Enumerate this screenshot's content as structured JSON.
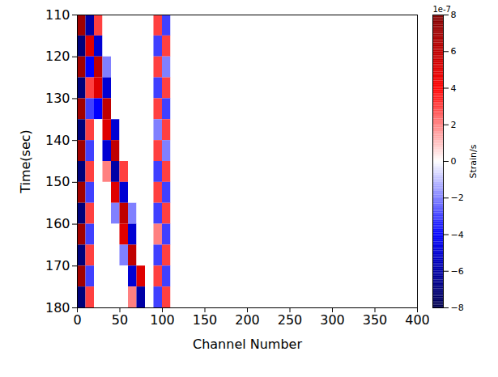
{
  "chart_data": {
    "type": "heatmap",
    "xlabel": "Channel Number",
    "ylabel": "Time(sec)",
    "xlim": [
      0,
      400
    ],
    "xticks": [
      0,
      50,
      100,
      150,
      200,
      250,
      300,
      350,
      400
    ],
    "ylim": [
      180,
      110
    ],
    "yticks": [
      110,
      120,
      130,
      140,
      150,
      160,
      170,
      180
    ],
    "x_edges": [
      0,
      10,
      20,
      30,
      40,
      50,
      60,
      70,
      80,
      90,
      100,
      110,
      120,
      130,
      140,
      150,
      160,
      170,
      180,
      190,
      200,
      210,
      220,
      230,
      240,
      250,
      260,
      270,
      280,
      290,
      300,
      310,
      320,
      330,
      340,
      350,
      360,
      370,
      380,
      390,
      400
    ],
    "y_edges": [
      110,
      115,
      120,
      125,
      130,
      135,
      140,
      145,
      150,
      155,
      160,
      165,
      170,
      175,
      180
    ],
    "values": [
      [
        7,
        -6,
        3,
        0,
        0,
        0,
        0,
        0,
        0,
        3,
        -3,
        0,
        0,
        0,
        0,
        0,
        0,
        0,
        0,
        0,
        0,
        0,
        0,
        0,
        0,
        0,
        0,
        0,
        0,
        0,
        0,
        0,
        0,
        0,
        0,
        0,
        0,
        0,
        0,
        0
      ],
      [
        -7,
        5,
        -5,
        0,
        0,
        0,
        0,
        0,
        0,
        -3,
        3,
        0,
        0,
        0,
        0,
        0,
        0,
        0,
        0,
        0,
        0,
        0,
        0,
        0,
        0,
        0,
        0,
        0,
        0,
        0,
        0,
        0,
        0,
        0,
        0,
        0,
        0,
        0,
        0,
        0
      ],
      [
        7,
        -4,
        6,
        -2,
        0,
        0,
        0,
        0,
        0,
        3,
        -2,
        0,
        0,
        0,
        0,
        0,
        0,
        0,
        0,
        0,
        0,
        0,
        0,
        0,
        0,
        0,
        0,
        0,
        0,
        0,
        0,
        0,
        0,
        0,
        0,
        0,
        0,
        0,
        0,
        0
      ],
      [
        -7,
        3,
        5,
        -5,
        0,
        0,
        0,
        0,
        0,
        -3,
        3,
        0,
        0,
        0,
        0,
        0,
        0,
        0,
        0,
        0,
        0,
        0,
        0,
        0,
        0,
        0,
        0,
        0,
        0,
        0,
        0,
        0,
        0,
        0,
        0,
        0,
        0,
        0,
        0,
        0
      ],
      [
        7,
        -3,
        -4,
        6,
        0,
        0,
        0,
        0,
        0,
        3,
        -3,
        0,
        0,
        0,
        0,
        0,
        0,
        0,
        0,
        0,
        0,
        0,
        0,
        0,
        0,
        0,
        0,
        0,
        0,
        0,
        0,
        0,
        0,
        0,
        0,
        0,
        0,
        0,
        0,
        0
      ],
      [
        -7,
        3,
        0,
        5,
        -5,
        0,
        0,
        0,
        0,
        -2,
        3,
        0,
        0,
        0,
        0,
        0,
        0,
        0,
        0,
        0,
        0,
        0,
        0,
        0,
        0,
        0,
        0,
        0,
        0,
        0,
        0,
        0,
        0,
        0,
        0,
        0,
        0,
        0,
        0,
        0
      ],
      [
        7,
        -3,
        0,
        -5,
        6,
        0,
        0,
        0,
        0,
        3,
        -2,
        0,
        0,
        0,
        0,
        0,
        0,
        0,
        0,
        0,
        0,
        0,
        0,
        0,
        0,
        0,
        0,
        0,
        0,
        0,
        0,
        0,
        0,
        0,
        0,
        0,
        0,
        0,
        0,
        0
      ],
      [
        -7,
        3,
        0,
        2,
        -6,
        3,
        0,
        0,
        0,
        -3,
        3,
        0,
        0,
        0,
        0,
        0,
        0,
        0,
        0,
        0,
        0,
        0,
        0,
        0,
        0,
        0,
        0,
        0,
        0,
        0,
        0,
        0,
        0,
        0,
        0,
        0,
        0,
        0,
        0,
        0
      ],
      [
        7,
        -3,
        0,
        0,
        5,
        -5,
        0,
        0,
        0,
        3,
        -3,
        0,
        0,
        0,
        0,
        0,
        0,
        0,
        0,
        0,
        0,
        0,
        0,
        0,
        0,
        0,
        0,
        0,
        0,
        0,
        0,
        0,
        0,
        0,
        0,
        0,
        0,
        0,
        0,
        0
      ],
      [
        -7,
        3,
        0,
        0,
        -2,
        6,
        -2,
        0,
        0,
        -3,
        3,
        0,
        0,
        0,
        0,
        0,
        0,
        0,
        0,
        0,
        0,
        0,
        0,
        0,
        0,
        0,
        0,
        0,
        0,
        0,
        0,
        0,
        0,
        0,
        0,
        0,
        0,
        0,
        0,
        0
      ],
      [
        7,
        -3,
        0,
        0,
        0,
        5,
        -5,
        0,
        0,
        2,
        -3,
        0,
        0,
        0,
        0,
        0,
        0,
        0,
        0,
        0,
        0,
        0,
        0,
        0,
        0,
        0,
        0,
        0,
        0,
        0,
        0,
        0,
        0,
        0,
        0,
        0,
        0,
        0,
        0,
        0
      ],
      [
        -7,
        3,
        0,
        0,
        0,
        -2,
        6,
        0,
        0,
        -3,
        3,
        0,
        0,
        0,
        0,
        0,
        0,
        0,
        0,
        0,
        0,
        0,
        0,
        0,
        0,
        0,
        0,
        0,
        0,
        0,
        0,
        0,
        0,
        0,
        0,
        0,
        0,
        0,
        0,
        0
      ],
      [
        7,
        -3,
        0,
        0,
        0,
        0,
        -5,
        5,
        0,
        3,
        -3,
        0,
        0,
        0,
        0,
        0,
        0,
        0,
        0,
        0,
        0,
        0,
        0,
        0,
        0,
        0,
        0,
        0,
        0,
        0,
        0,
        0,
        0,
        0,
        0,
        0,
        0,
        0,
        0,
        0
      ],
      [
        -7,
        3,
        0,
        0,
        0,
        0,
        2,
        -6,
        0,
        -3,
        3,
        0,
        0,
        0,
        0,
        0,
        0,
        0,
        0,
        0,
        0,
        0,
        0,
        0,
        0,
        0,
        0,
        0,
        0,
        0,
        0,
        0,
        0,
        0,
        0,
        0,
        0,
        0,
        0,
        0
      ]
    ],
    "colorbar": {
      "label": "Strain/s",
      "offset_label": "1e-7",
      "range": [
        -8,
        8
      ],
      "ticks": [
        -8,
        -6,
        -4,
        -2,
        0,
        2,
        4,
        6,
        8
      ]
    }
  }
}
